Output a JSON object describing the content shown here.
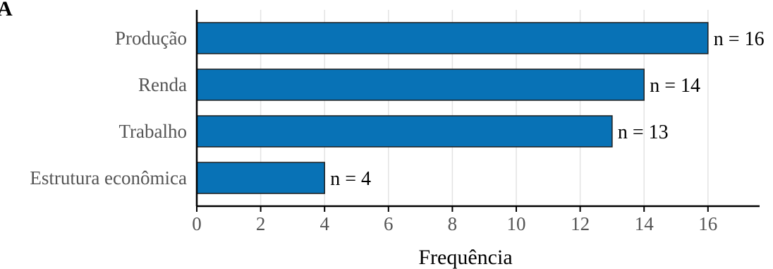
{
  "panel_label": "A",
  "chart_data": {
    "type": "bar",
    "orientation": "horizontal",
    "categories": [
      "Produção",
      "Renda",
      "Trabalho",
      "Estrutura econômica"
    ],
    "values": [
      16,
      14,
      13,
      4
    ],
    "data_labels": [
      "n = 16",
      "n = 14",
      "n = 13",
      "n = 4"
    ],
    "xlabel": "Frequência",
    "ylabel": "",
    "xlim": [
      0,
      17.5
    ],
    "xticks": [
      0,
      2,
      4,
      6,
      8,
      10,
      12,
      14,
      16
    ],
    "grid": true,
    "bar_color": "#0872b6"
  }
}
